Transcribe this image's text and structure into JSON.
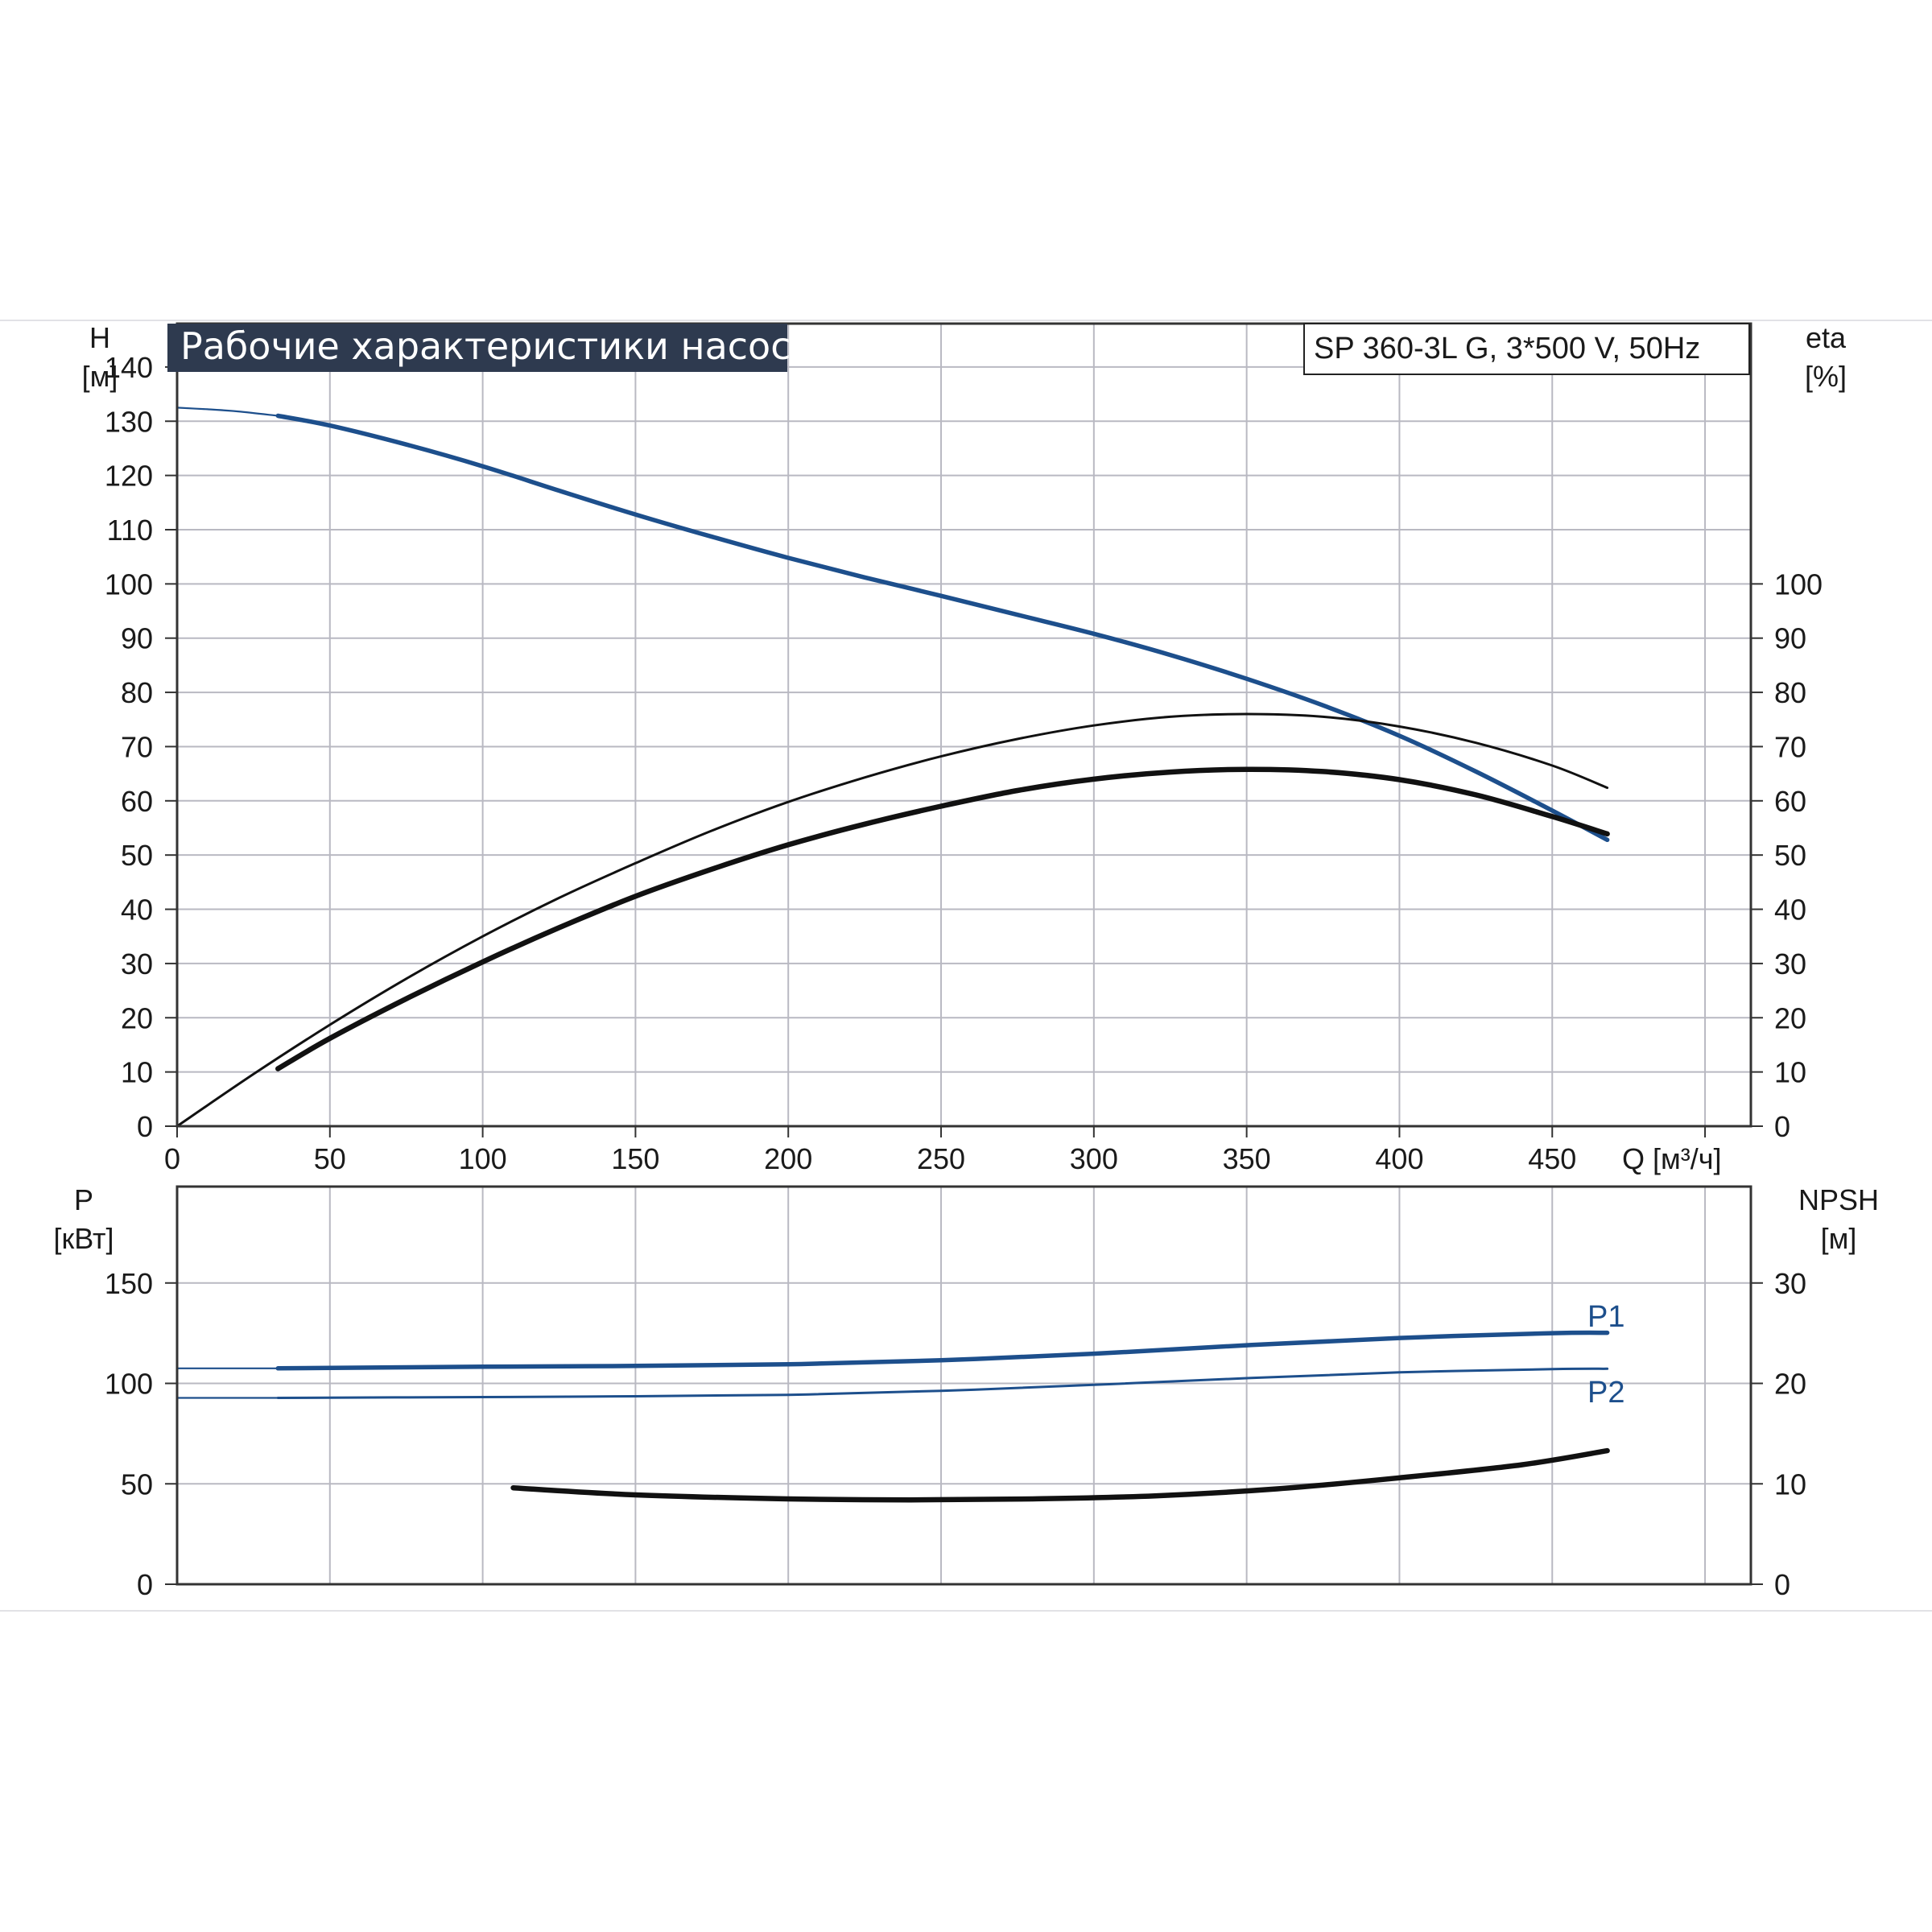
{
  "colors": {
    "grid": "#b9b9c2",
    "axis": "#333333",
    "title_bg": "#2e3a4f",
    "blue": "#1d4f8c",
    "black": "#111111"
  },
  "chart_data": [
    {
      "type": "line",
      "title": "Рабочие характеристики насоса",
      "model": "SP 360-3L G, 3*500 V, 50Hz",
      "xlabel": "Q [м³/ч]",
      "ylabel_left": [
        "H",
        "[м]"
      ],
      "ylabel_right": [
        "eta",
        "[%]"
      ],
      "xlim": [
        0,
        515
      ],
      "ylim_left": [
        0,
        148
      ],
      "ylim_right": [
        0,
        148
      ],
      "x_ticks": [
        "0",
        "50",
        "100",
        "150",
        "200",
        "250",
        "300",
        "350",
        "400",
        "450"
      ],
      "y_ticks_left": [
        "0",
        "10",
        "20",
        "30",
        "40",
        "50",
        "60",
        "70",
        "80",
        "90",
        "100",
        "110",
        "120",
        "130",
        "140"
      ],
      "y_ticks_right": [
        "0",
        "10",
        "20",
        "30",
        "40",
        "50",
        "60",
        "70",
        "80",
        "90",
        "100"
      ],
      "grid": true,
      "series": [
        {
          "axis": "left",
          "color": "blue",
          "dashed_start": {
            "x": [
              0,
              10,
              20,
              33
            ],
            "y": [
              132.5,
              132.2,
              131.8,
              131
            ]
          },
          "x": [
            33,
            50,
            75,
            100,
            125,
            150,
            175,
            200,
            225,
            250,
            275,
            300,
            325,
            350,
            375,
            400,
            425,
            450,
            468
          ],
          "y": [
            131,
            129.2,
            125.7,
            121.7,
            117.2,
            112.8,
            108.7,
            104.8,
            101.2,
            97.8,
            94.3,
            90.8,
            86.9,
            82.5,
            77.6,
            72.0,
            65.4,
            58.2,
            52.8
          ]
        },
        {
          "axis": "right",
          "color": "black",
          "x": [
            0,
            25,
            50,
            75,
            100,
            125,
            150,
            175,
            200,
            225,
            250,
            275,
            300,
            325,
            350,
            375,
            400,
            425,
            450,
            468
          ],
          "y": [
            0,
            9.6,
            18.7,
            27.2,
            35.0,
            42.1,
            48.5,
            54.5,
            59.8,
            64.3,
            68.2,
            71.4,
            73.9,
            75.5,
            76.0,
            75.5,
            73.7,
            70.7,
            66.5,
            62.4
          ]
        },
        {
          "axis": "right",
          "color": "black",
          "thick": true,
          "x": [
            33,
            50,
            75,
            100,
            125,
            150,
            175,
            200,
            225,
            250,
            275,
            300,
            325,
            350,
            375,
            400,
            425,
            450,
            468
          ],
          "y": [
            10.6,
            16.2,
            23.5,
            30.3,
            36.6,
            42.4,
            47.4,
            51.9,
            55.7,
            59.0,
            61.9,
            64.0,
            65.3,
            65.8,
            65.4,
            63.9,
            61.1,
            57.1,
            53.9
          ]
        }
      ]
    },
    {
      "type": "line",
      "ylabel_left": [
        "P",
        "[кВт]"
      ],
      "ylabel_right": [
        "NPSH",
        "[м]"
      ],
      "xlim": [
        0,
        515
      ],
      "ylim_left": [
        0,
        198
      ],
      "ylim_right": [
        0,
        39.6
      ],
      "y_ticks_left": [
        "0",
        "50",
        "100",
        "150"
      ],
      "y_ticks_right": [
        "0",
        "10",
        "20",
        "30"
      ],
      "grid": true,
      "series": [
        {
          "name": "P1",
          "axis": "left",
          "color": "blue",
          "dashed_start": {
            "x": [
              0,
              33
            ],
            "y": [
              107.5,
              107.5
            ]
          },
          "x": [
            33,
            100,
            150,
            200,
            250,
            300,
            350,
            400,
            450,
            468
          ],
          "y": [
            107.5,
            108.3,
            108.7,
            109.5,
            111.5,
            114.8,
            119.0,
            122.6,
            125.0,
            125.2
          ]
        },
        {
          "name": "P2",
          "axis": "left",
          "color": "blue",
          "thin": true,
          "dashed_start": {
            "x": [
              0,
              33
            ],
            "y": [
              92.8,
              92.8
            ]
          },
          "x": [
            33,
            100,
            150,
            200,
            250,
            300,
            350,
            400,
            450,
            468
          ],
          "y": [
            92.8,
            93.2,
            93.6,
            94.3,
            96.3,
            99.3,
            102.6,
            105.5,
            107.1,
            107.3
          ]
        },
        {
          "axis": "right",
          "color": "black",
          "thick": true,
          "x": [
            110,
            150,
            200,
            240,
            280,
            320,
            360,
            400,
            440,
            468
          ],
          "y": [
            9.6,
            8.9,
            8.5,
            8.4,
            8.5,
            8.8,
            9.5,
            10.6,
            11.9,
            13.3
          ]
        }
      ]
    }
  ]
}
